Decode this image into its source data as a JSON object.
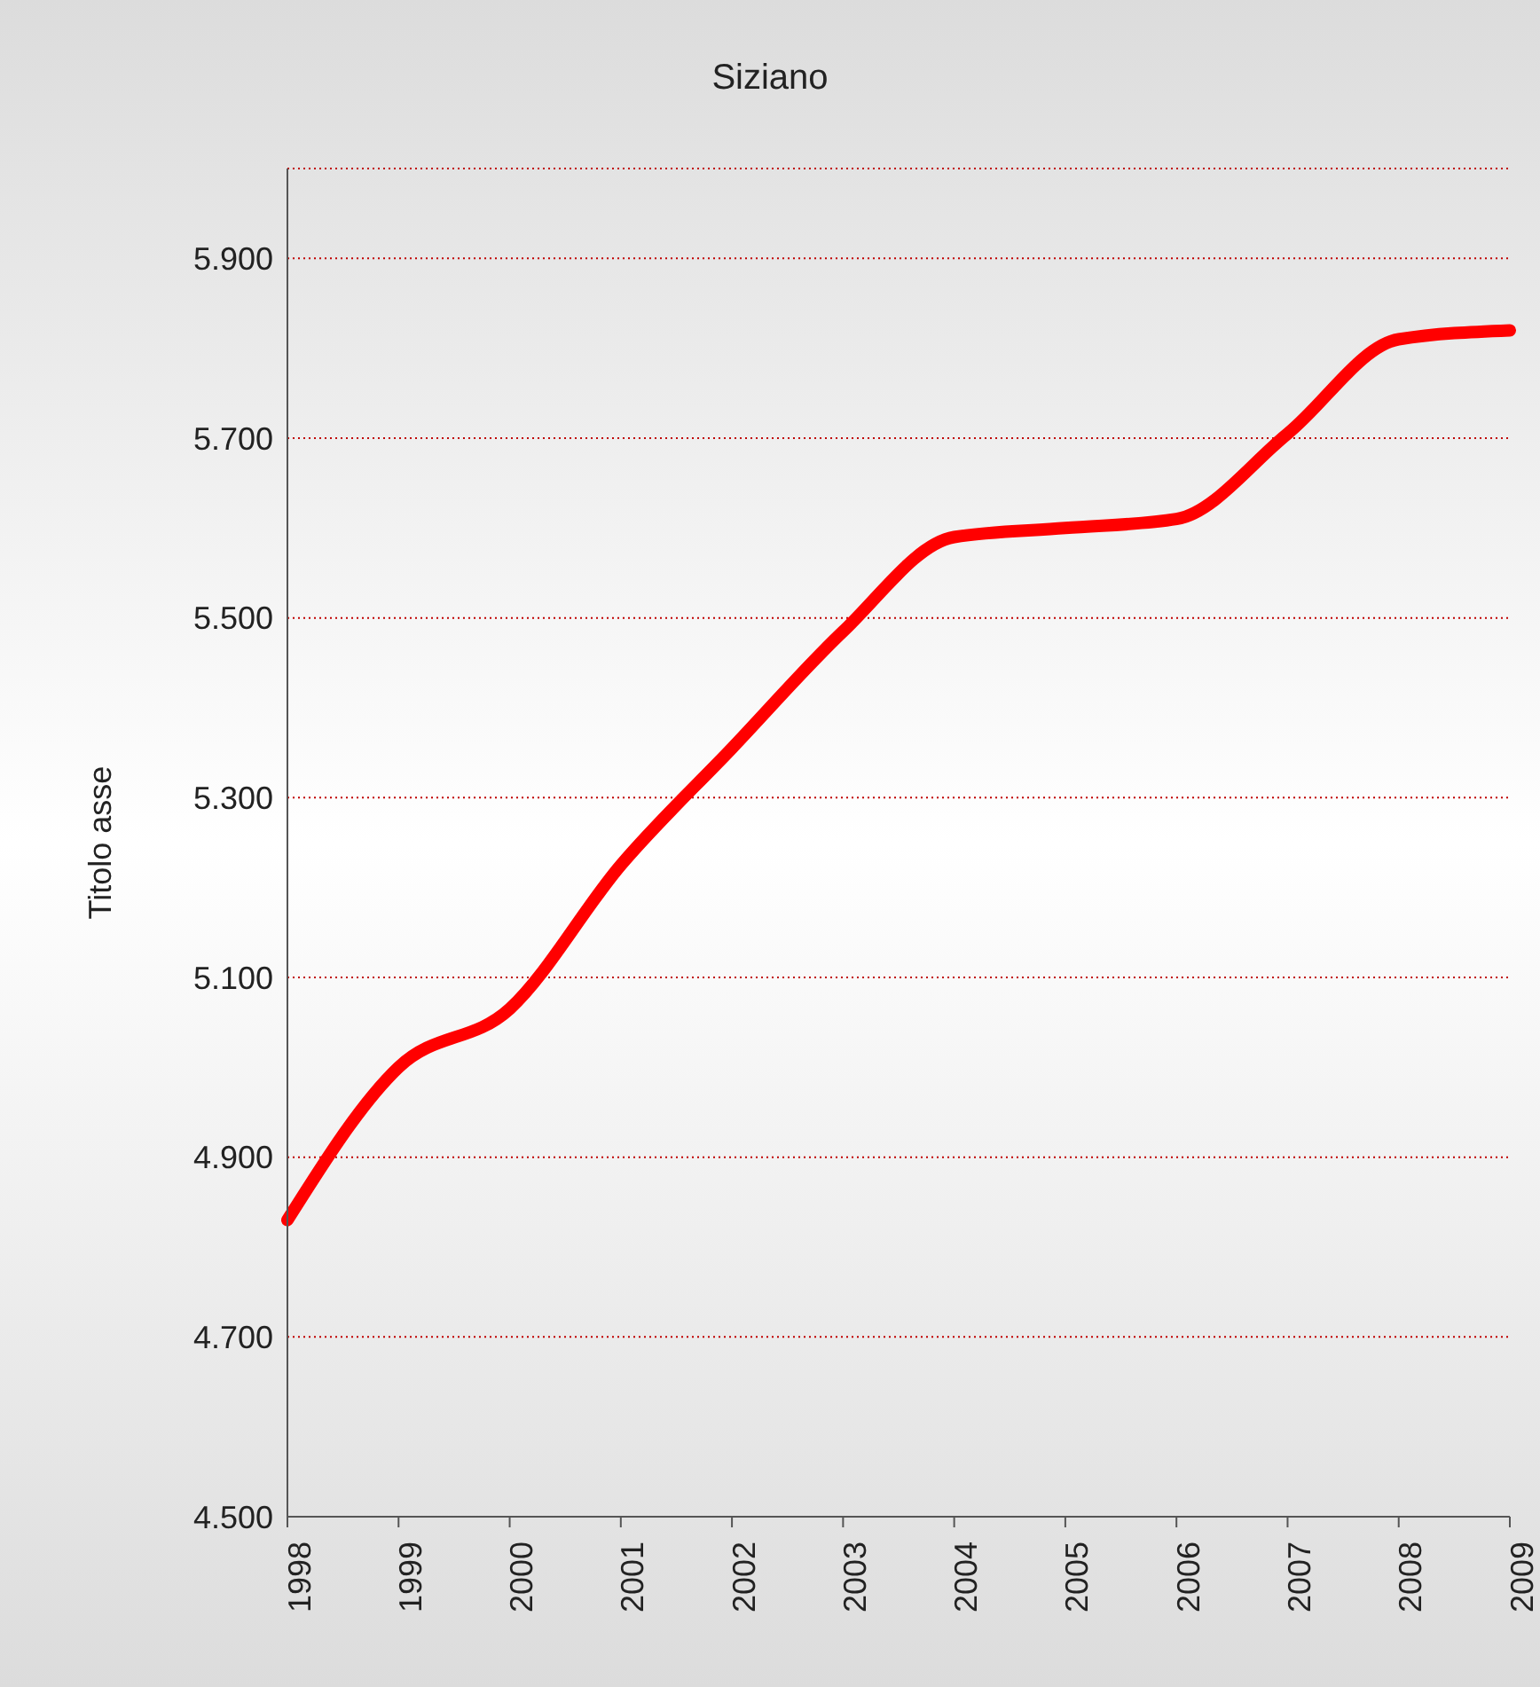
{
  "chart_data": {
    "type": "line",
    "title": "Siziano",
    "ylabel": "Titolo asse",
    "categories": [
      "1998",
      "1999",
      "2000",
      "2001",
      "2002",
      "2003",
      "2004",
      "2005",
      "2006",
      "2007",
      "2008",
      "2009"
    ],
    "series": [
      {
        "color": "#ff0000",
        "values": [
          4830,
          5000,
          5065,
          5225,
          5355,
          5485,
          5590,
          5600,
          5610,
          5705,
          5810,
          5820
        ]
      }
    ],
    "ylim": [
      4500,
      6000
    ],
    "yticks": [
      {
        "value": 4500,
        "label": "4.500"
      },
      {
        "value": 4700,
        "label": "4.700"
      },
      {
        "value": 4900,
        "label": "4.900"
      },
      {
        "value": 5100,
        "label": "5.100"
      },
      {
        "value": 5300,
        "label": "5.300"
      },
      {
        "value": 5500,
        "label": "5.500"
      },
      {
        "value": 5700,
        "label": "5.700"
      },
      {
        "value": 5900,
        "label": "5.900"
      }
    ],
    "grid": "y",
    "legend": false,
    "marker": "none",
    "line_style": "solid"
  }
}
